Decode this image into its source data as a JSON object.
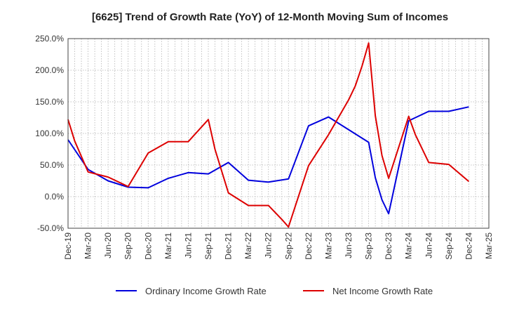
{
  "chart_data": {
    "type": "line",
    "title": "[6625]  Trend of Growth Rate (YoY) of 12-Month Moving Sum of Incomes",
    "xlabel": "",
    "ylabel": "",
    "ylim": [
      -50,
      250
    ],
    "y_ticks": [
      "-50.0%",
      "0.0%",
      "50.0%",
      "100.0%",
      "150.0%",
      "200.0%",
      "250.0%"
    ],
    "x_ticks": [
      "Dec-19",
      "Mar-20",
      "Jun-20",
      "Sep-20",
      "Dec-20",
      "Mar-21",
      "Jun-21",
      "Sep-21",
      "Dec-21",
      "Mar-22",
      "Jun-22",
      "Sep-22",
      "Dec-22",
      "Mar-23",
      "Jun-23",
      "Sep-23",
      "Dec-23",
      "Mar-24",
      "Jun-24",
      "Sep-24",
      "Dec-24",
      "Mar-25"
    ],
    "grid": true,
    "legend_position": "bottom",
    "series": [
      {
        "name": "Ordinary Income Growth Rate",
        "color": "#0000dd",
        "points": [
          [
            "Dec-19",
            90
          ],
          [
            "Mar-20",
            43
          ],
          [
            "Jun-20",
            25
          ],
          [
            "Sep-20",
            15
          ],
          [
            "Dec-20",
            14
          ],
          [
            "Mar-21",
            29
          ],
          [
            "Jun-21",
            38
          ],
          [
            "Sep-21",
            36
          ],
          [
            "Dec-21",
            54
          ],
          [
            "Mar-22",
            26
          ],
          [
            "Jun-22",
            23
          ],
          [
            "Sep-22",
            28
          ],
          [
            "Dec-22",
            112
          ],
          [
            "Mar-23",
            126
          ],
          [
            "Jun-23",
            106
          ],
          [
            "Sep-23",
            86
          ],
          [
            "Oct-23",
            30
          ],
          [
            "Nov-23",
            -5
          ],
          [
            "Dec-23",
            -27
          ],
          [
            "Mar-24",
            120
          ],
          [
            "Jun-24",
            135
          ],
          [
            "Sep-24",
            135
          ],
          [
            "Dec-24",
            142
          ]
        ]
      },
      {
        "name": "Net Income Growth Rate",
        "color": "#dd0000",
        "points": [
          [
            "Dec-19",
            122
          ],
          [
            "Jan-20",
            88
          ],
          [
            "Mar-20",
            39
          ],
          [
            "Jun-20",
            31
          ],
          [
            "Sep-20",
            16
          ],
          [
            "Dec-20",
            69
          ],
          [
            "Mar-21",
            87
          ],
          [
            "Jun-21",
            87
          ],
          [
            "Sep-21",
            122
          ],
          [
            "Oct-21",
            75
          ],
          [
            "Dec-21",
            6
          ],
          [
            "Mar-22",
            -14
          ],
          [
            "Jun-22",
            -14
          ],
          [
            "Aug-22",
            -36
          ],
          [
            "Sep-22",
            -48
          ],
          [
            "Dec-22",
            49
          ],
          [
            "Mar-23",
            98
          ],
          [
            "Jun-23",
            153
          ],
          [
            "Jul-23",
            175
          ],
          [
            "Aug-23",
            206
          ],
          [
            "Sep-23",
            243
          ],
          [
            "Oct-23",
            128
          ],
          [
            "Nov-23",
            65
          ],
          [
            "Dec-23",
            29
          ],
          [
            "Mar-24",
            127
          ],
          [
            "Apr-24",
            98
          ],
          [
            "Jun-24",
            54
          ],
          [
            "Sep-24",
            51
          ],
          [
            "Dec-24",
            24
          ]
        ]
      }
    ]
  }
}
